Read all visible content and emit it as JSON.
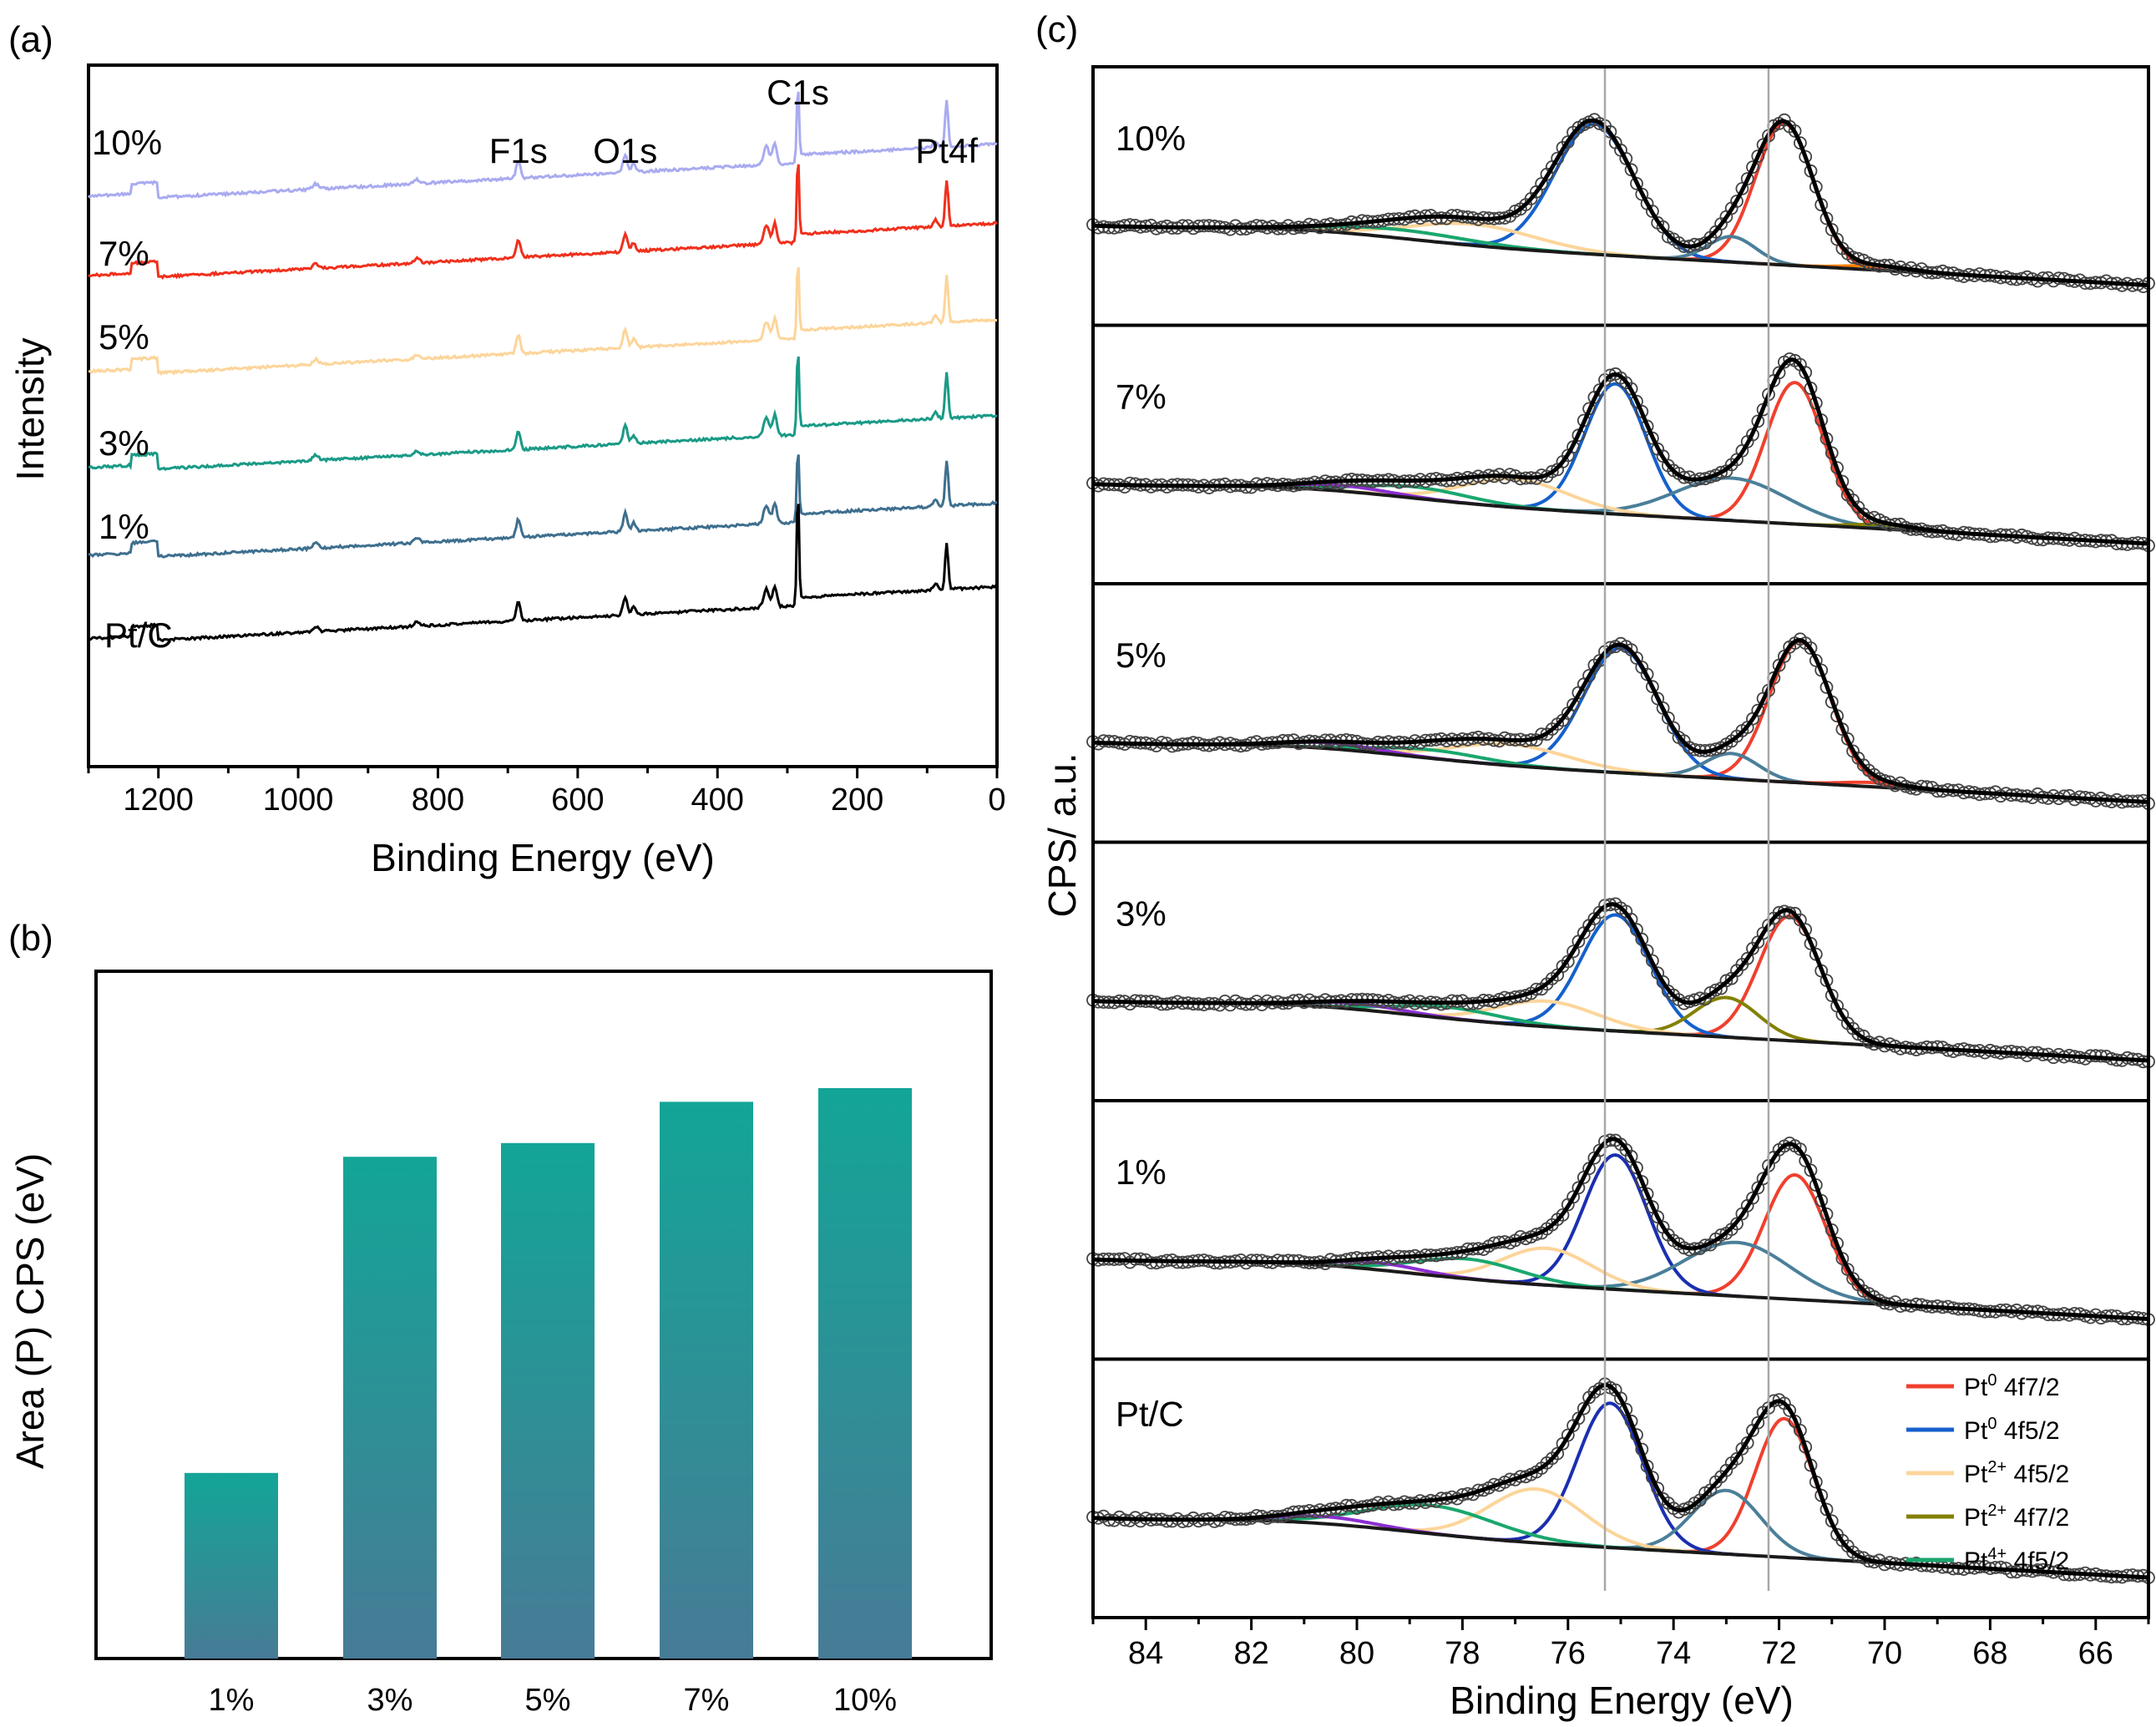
{
  "chart_data": [
    {
      "panel": "(a)",
      "type": "line",
      "xlabel": "Binding Energy (eV)",
      "ylabel": "Intensity",
      "xlim": [
        1300,
        0
      ],
      "xticks": [
        "1200",
        "1000",
        "800",
        "600",
        "400",
        "200",
        "0"
      ],
      "annotations": [
        {
          "text": "F1s",
          "x": 685
        },
        {
          "text": "O1s",
          "x": 532
        },
        {
          "text": "C1s",
          "x": 285
        },
        {
          "text": "Pt4f",
          "x": 72
        }
      ],
      "series": [
        {
          "name": "10%",
          "color": "#a9abf0",
          "offset": 5
        },
        {
          "name": "7%",
          "color": "#f0301c",
          "offset": 4
        },
        {
          "name": "5%",
          "color": "#fcd59a",
          "offset": 3
        },
        {
          "name": "3%",
          "color": "#1a9a86",
          "offset": 2
        },
        {
          "name": "1%",
          "color": "#3e6f8e",
          "offset": 1
        },
        {
          "name": "Pt/C",
          "color": "#000000",
          "offset": 0
        }
      ]
    },
    {
      "panel": "(b)",
      "type": "bar",
      "ylabel": "Area (P) CPS (eV)",
      "categories": [
        "1%",
        "3%",
        "5%",
        "7%",
        "10%"
      ],
      "values": [
        27,
        73,
        75,
        81,
        83
      ],
      "ylim": [
        0,
        100
      ],
      "color_top": "#13a597",
      "color_bottom": "#477b96"
    },
    {
      "panel": "(c)",
      "type": "line",
      "xlabel": "Binding Energy (eV)",
      "ylabel": "CPS/ a.u.",
      "xlim": [
        85,
        65
      ],
      "xticks": [
        "84",
        "82",
        "80",
        "78",
        "76",
        "74",
        "72",
        "70",
        "68",
        "66"
      ],
      "reference_lines": [
        75.3,
        72.2
      ],
      "subpanels": [
        "10%",
        "7%",
        "5%",
        "3%",
        "1%",
        "Pt/C"
      ],
      "legend": [
        {
          "base": "Pt",
          "sup": "0",
          "label": " 4f7/2",
          "color": "#f0402e"
        },
        {
          "base": "Pt",
          "sup": "0",
          "label": " 4f5/2",
          "color": "#1560cc"
        },
        {
          "base": "Pt",
          "sup": "2+",
          "label": " 4f5/2",
          "color": "#fcd59a"
        },
        {
          "base": "Pt",
          "sup": "2+",
          "label": " 4f7/2",
          "color": "#838000"
        },
        {
          "base": "Pt",
          "sup": "4+",
          "label": " 4f5/2",
          "color": "#1aa76e"
        }
      ],
      "fit_components": [
        {
          "label": "10%",
          "peaks": [
            {
              "c": 71.9,
              "h": 100,
              "w": 0.55,
              "color": "#f0402e"
            },
            {
              "c": 75.5,
              "h": 92,
              "w": 0.75,
              "color": "#1560cc"
            },
            {
              "c": 72.9,
              "h": 18,
              "w": 0.45,
              "color": "#4a7f99"
            },
            {
              "c": 77.8,
              "h": 15,
              "w": 1.2,
              "color": "#fcd59a"
            },
            {
              "c": 79.2,
              "h": 6,
              "w": 1.3,
              "color": "#1aa76e"
            },
            {
              "c": 70.1,
              "h": 3,
              "w": 0.6,
              "color": "#ff8000"
            }
          ]
        },
        {
          "label": "7%",
          "peaks": [
            {
              "c": 71.7,
              "h": 100,
              "w": 0.55,
              "color": "#f0402e"
            },
            {
              "c": 75.1,
              "h": 92,
              "w": 0.58,
              "color": "#1560cc"
            },
            {
              "c": 72.9,
              "h": 30,
              "w": 1.05,
              "color": "#4a7f99"
            },
            {
              "c": 77.0,
              "h": 20,
              "w": 1.0,
              "color": "#fcd59a"
            },
            {
              "c": 78.9,
              "h": 8,
              "w": 1.0,
              "color": "#1aa76e"
            },
            {
              "c": 80.3,
              "h": 4,
              "w": 0.9,
              "color": "#8b2fd0"
            },
            {
              "c": 70.0,
              "h": 3,
              "w": 0.6,
              "color": "#838000"
            }
          ]
        },
        {
          "label": "5%",
          "peaks": [
            {
              "c": 71.6,
              "h": 100,
              "w": 0.58,
              "color": "#f0402e"
            },
            {
              "c": 75.0,
              "h": 88,
              "w": 0.7,
              "color": "#1560cc"
            },
            {
              "c": 72.9,
              "h": 18,
              "w": 0.5,
              "color": "#4a7f99"
            },
            {
              "c": 77.1,
              "h": 15,
              "w": 1.1,
              "color": "#fcd59a"
            },
            {
              "c": 78.6,
              "h": 6,
              "w": 1.0,
              "color": "#1aa76e"
            },
            {
              "c": 80.5,
              "h": 4,
              "w": 0.9,
              "color": "#8b2fd0"
            },
            {
              "c": 70.2,
              "h": 3,
              "w": 0.6,
              "color": "#f0402e"
            }
          ]
        },
        {
          "label": "3%",
          "peaks": [
            {
              "c": 71.8,
              "h": 88,
              "w": 0.58,
              "color": "#f0402e"
            },
            {
              "c": 75.1,
              "h": 82,
              "w": 0.65,
              "color": "#1560cc"
            },
            {
              "c": 73.0,
              "h": 28,
              "w": 0.6,
              "color": "#838000"
            },
            {
              "c": 76.4,
              "h": 18,
              "w": 0.95,
              "color": "#fcd59a"
            },
            {
              "c": 78.3,
              "h": 8,
              "w": 1.0,
              "color": "#1aa76e"
            },
            {
              "c": 80.0,
              "h": 4,
              "w": 0.9,
              "color": "#8b2fd0"
            }
          ]
        },
        {
          "label": "1%",
          "peaks": [
            {
              "c": 71.7,
              "h": 88,
              "w": 0.58,
              "color": "#f0402e"
            },
            {
              "c": 75.1,
              "h": 95,
              "w": 0.6,
              "color": "#1a2fb0"
            },
            {
              "c": 72.8,
              "h": 38,
              "w": 1.0,
              "color": "#4a7f99"
            },
            {
              "c": 76.4,
              "h": 26,
              "w": 0.85,
              "color": "#fcd59a"
            },
            {
              "c": 77.9,
              "h": 14,
              "w": 1.0,
              "color": "#1aa76e"
            },
            {
              "c": 79.6,
              "h": 5,
              "w": 0.8,
              "color": "#8b2fd0"
            }
          ]
        },
        {
          "label": "Pt/C",
          "peaks": [
            {
              "c": 71.9,
              "h": 98,
              "w": 0.55,
              "color": "#f0402e"
            },
            {
              "c": 75.2,
              "h": 102,
              "w": 0.62,
              "color": "#1a2fb0"
            },
            {
              "c": 73.0,
              "h": 45,
              "w": 0.65,
              "color": "#4a7f99"
            },
            {
              "c": 76.6,
              "h": 38,
              "w": 0.9,
              "color": "#fcd59a"
            },
            {
              "c": 78.6,
              "h": 20,
              "w": 1.2,
              "color": "#1aa76e"
            },
            {
              "c": 80.6,
              "h": 5,
              "w": 0.9,
              "color": "#8b2fd0"
            }
          ]
        }
      ]
    }
  ],
  "panel_labels": {
    "a": "(a)",
    "b": "(b)",
    "c": "(c)"
  }
}
